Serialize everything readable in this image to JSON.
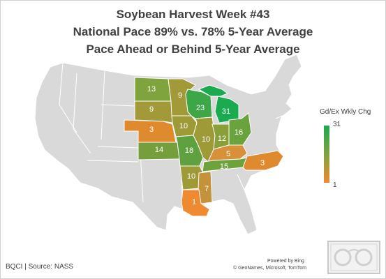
{
  "title": {
    "line1": "Soybean Harvest Week #43",
    "line2": "National Pace 89% vs. 78% 5-Year Average",
    "line3": "Pace Ahead or Behind 5-Year Average"
  },
  "legend": {
    "title": "Gd/Ex Wkly Chg",
    "max_label": "31",
    "min_label": "1",
    "high_color": "#1aaa4f",
    "low_color": "#f08a30"
  },
  "colors": {
    "background_states": "#d9d9d9",
    "state_border": "#ffffff"
  },
  "states": [
    {
      "name": "North Dakota",
      "value": "13",
      "color": "#7fa33d"
    },
    {
      "name": "South Dakota",
      "value": "9",
      "color": "#a29a38"
    },
    {
      "name": "Minnesota",
      "value": "9",
      "color": "#a29a38"
    },
    {
      "name": "Nebraska",
      "value": "3",
      "color": "#e08a30"
    },
    {
      "name": "Iowa",
      "value": "10",
      "color": "#9e9a38"
    },
    {
      "name": "Kansas",
      "value": "14",
      "color": "#769e3c"
    },
    {
      "name": "Missouri",
      "value": "18",
      "color": "#5fa13e"
    },
    {
      "name": "Wisconsin",
      "value": "23",
      "color": "#3da646"
    },
    {
      "name": "Michigan",
      "value": "31",
      "color": "#1aaa4f"
    },
    {
      "name": "Illinois",
      "value": "10",
      "color": "#9e9a38"
    },
    {
      "name": "Indiana",
      "value": "12",
      "color": "#8a9e3a"
    },
    {
      "name": "Ohio",
      "value": "16",
      "color": "#6aa33e"
    },
    {
      "name": "Kentucky",
      "value": "5",
      "color": "#d8913a"
    },
    {
      "name": "Tennessee",
      "value": "15",
      "color": "#6ea23d"
    },
    {
      "name": "North Carolina",
      "value": "3",
      "color": "#e08a30"
    },
    {
      "name": "Arkansas",
      "value": "10",
      "color": "#9e9a38"
    },
    {
      "name": "Mississippi",
      "value": "7",
      "color": "#c4923a"
    },
    {
      "name": "Louisiana",
      "value": "1",
      "color": "#f08a30"
    }
  ],
  "footer": {
    "source": "BQCI | Source: NASS",
    "powered_by": "Powered by Bing",
    "attribution": "© GeoNames, Microsoft, TomTom"
  }
}
